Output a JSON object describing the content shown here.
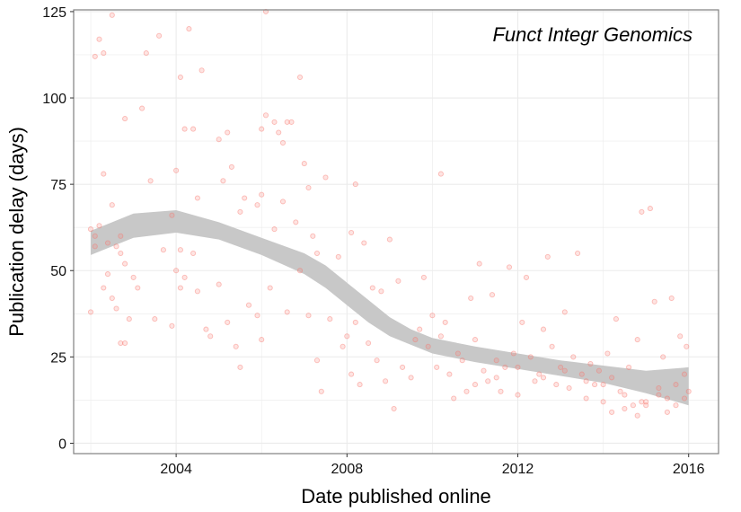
{
  "chart_data": {
    "type": "scatter",
    "title": "",
    "annotation": "Funct Integr Genomics",
    "xlabel": "Date published online",
    "ylabel": "Publication delay (days)",
    "xlim": [
      2001.6,
      2016.7
    ],
    "ylim": [
      -3,
      125.5
    ],
    "x_ticks": [
      2004,
      2008,
      2012,
      2016
    ],
    "x_tick_labels": [
      "2004",
      "2008",
      "2012",
      "2016"
    ],
    "y_ticks": [
      0,
      25,
      50,
      75,
      100,
      125
    ],
    "y_tick_labels": [
      "0",
      "25",
      "50",
      "75",
      "100",
      "125"
    ],
    "grid": true,
    "colors": {
      "points": "#f8766d",
      "smooth_band": "#c8c8c8",
      "panel_border": "#808080",
      "grid": "#ebebeb"
    },
    "smooth_band": [
      {
        "x": 2002.0,
        "lo": 54.5,
        "hi": 61.5
      },
      {
        "x": 2003.0,
        "lo": 59.5,
        "hi": 66.5
      },
      {
        "x": 2004.0,
        "lo": 61.0,
        "hi": 67.5
      },
      {
        "x": 2005.0,
        "lo": 59.0,
        "hi": 64.0
      },
      {
        "x": 2006.0,
        "lo": 54.5,
        "hi": 59.5
      },
      {
        "x": 2007.0,
        "lo": 49.0,
        "hi": 55.0
      },
      {
        "x": 2007.5,
        "lo": 45.0,
        "hi": 51.5
      },
      {
        "x": 2008.0,
        "lo": 40.0,
        "hi": 46.5
      },
      {
        "x": 2008.5,
        "lo": 35.0,
        "hi": 41.5
      },
      {
        "x": 2009.0,
        "lo": 31.0,
        "hi": 36.5
      },
      {
        "x": 2009.5,
        "lo": 28.5,
        "hi": 33.0
      },
      {
        "x": 2010.0,
        "lo": 26.0,
        "hi": 30.5
      },
      {
        "x": 2011.0,
        "lo": 23.5,
        "hi": 28.0
      },
      {
        "x": 2012.0,
        "lo": 21.5,
        "hi": 26.0
      },
      {
        "x": 2013.0,
        "lo": 19.5,
        "hi": 24.0
      },
      {
        "x": 2014.0,
        "lo": 17.5,
        "hi": 22.5
      },
      {
        "x": 2015.0,
        "lo": 14.5,
        "hi": 21.0
      },
      {
        "x": 2016.0,
        "lo": 11.0,
        "hi": 22.0
      }
    ],
    "points": [
      [
        2002.1,
        112
      ],
      [
        2002.2,
        117
      ],
      [
        2002.3,
        113
      ],
      [
        2002.5,
        124
      ],
      [
        2003.3,
        113
      ],
      [
        2003.6,
        118
      ],
      [
        2004.3,
        120
      ],
      [
        2004.6,
        108
      ],
      [
        2002.8,
        94
      ],
      [
        2003.2,
        97
      ],
      [
        2004.1,
        106
      ],
      [
        2004.2,
        91
      ],
      [
        2004.4,
        91
      ],
      [
        2005.0,
        88
      ],
      [
        2005.2,
        90
      ],
      [
        2005.6,
        71
      ],
      [
        2006.0,
        91
      ],
      [
        2006.1,
        95
      ],
      [
        2006.3,
        93
      ],
      [
        2006.4,
        90
      ],
      [
        2006.5,
        87
      ],
      [
        2006.6,
        93
      ],
      [
        2006.7,
        93
      ],
      [
        2006.9,
        106
      ],
      [
        2006.1,
        125
      ],
      [
        2007.0,
        81
      ],
      [
        2007.1,
        74
      ],
      [
        2007.5,
        77
      ],
      [
        2008.2,
        75
      ],
      [
        2010.2,
        78
      ],
      [
        2002.0,
        62
      ],
      [
        2002.1,
        60
      ],
      [
        2002.2,
        63
      ],
      [
        2002.3,
        78
      ],
      [
        2002.4,
        58
      ],
      [
        2002.5,
        69
      ],
      [
        2002.6,
        57
      ],
      [
        2002.7,
        60
      ],
      [
        2002.7,
        55
      ],
      [
        2002.8,
        52
      ],
      [
        2003.1,
        45
      ],
      [
        2003.4,
        76
      ],
      [
        2004.0,
        79
      ],
      [
        2004.5,
        71
      ],
      [
        2003.9,
        66
      ],
      [
        2004.1,
        56
      ],
      [
        2004.4,
        55
      ],
      [
        2005.1,
        76
      ],
      [
        2005.3,
        80
      ],
      [
        2005.5,
        67
      ],
      [
        2005.9,
        69
      ],
      [
        2006.0,
        72
      ],
      [
        2006.3,
        62
      ],
      [
        2006.5,
        70
      ],
      [
        2006.8,
        64
      ],
      [
        2007.2,
        60
      ],
      [
        2007.3,
        55
      ],
      [
        2007.8,
        54
      ],
      [
        2008.1,
        61
      ],
      [
        2008.4,
        58
      ],
      [
        2002.0,
        38
      ],
      [
        2002.1,
        57
      ],
      [
        2002.3,
        45
      ],
      [
        2002.4,
        49
      ],
      [
        2002.5,
        42
      ],
      [
        2002.6,
        39
      ],
      [
        2002.7,
        29
      ],
      [
        2002.8,
        29
      ],
      [
        2002.9,
        36
      ],
      [
        2003.0,
        48
      ],
      [
        2003.5,
        36
      ],
      [
        2003.7,
        56
      ],
      [
        2003.9,
        34
      ],
      [
        2004.0,
        50
      ],
      [
        2004.1,
        45
      ],
      [
        2004.2,
        48
      ],
      [
        2004.5,
        44
      ],
      [
        2004.7,
        33
      ],
      [
        2004.8,
        31
      ],
      [
        2005.0,
        46
      ],
      [
        2005.2,
        35
      ],
      [
        2005.4,
        28
      ],
      [
        2005.5,
        22
      ],
      [
        2005.7,
        40
      ],
      [
        2005.9,
        37
      ],
      [
        2006.0,
        30
      ],
      [
        2006.2,
        45
      ],
      [
        2006.6,
        38
      ],
      [
        2006.9,
        50
      ],
      [
        2007.1,
        37
      ],
      [
        2007.3,
        24
      ],
      [
        2007.6,
        36
      ],
      [
        2007.9,
        28
      ],
      [
        2008.0,
        31
      ],
      [
        2008.2,
        35
      ],
      [
        2008.5,
        29
      ],
      [
        2008.6,
        45
      ],
      [
        2008.8,
        44
      ],
      [
        2009.0,
        59
      ],
      [
        2009.2,
        47
      ],
      [
        2007.4,
        15
      ],
      [
        2008.1,
        20
      ],
      [
        2008.3,
        17
      ],
      [
        2008.7,
        24
      ],
      [
        2008.9,
        18
      ],
      [
        2009.1,
        10
      ],
      [
        2009.3,
        22
      ],
      [
        2009.5,
        19
      ],
      [
        2009.7,
        33
      ],
      [
        2009.8,
        48
      ],
      [
        2010.0,
        37
      ],
      [
        2010.1,
        22
      ],
      [
        2010.3,
        35
      ],
      [
        2010.4,
        20
      ],
      [
        2010.5,
        13
      ],
      [
        2010.6,
        26
      ],
      [
        2010.8,
        15
      ],
      [
        2010.9,
        42
      ],
      [
        2011.0,
        30
      ],
      [
        2011.1,
        52
      ],
      [
        2011.2,
        21
      ],
      [
        2011.3,
        18
      ],
      [
        2011.4,
        43
      ],
      [
        2011.5,
        19
      ],
      [
        2011.6,
        15
      ],
      [
        2011.7,
        22
      ],
      [
        2011.8,
        51
      ],
      [
        2011.9,
        26
      ],
      [
        2012.0,
        14
      ],
      [
        2012.1,
        35
      ],
      [
        2012.2,
        48
      ],
      [
        2012.3,
        25
      ],
      [
        2012.4,
        18
      ],
      [
        2012.5,
        20
      ],
      [
        2012.6,
        33
      ],
      [
        2012.7,
        54
      ],
      [
        2012.8,
        28
      ],
      [
        2012.9,
        17
      ],
      [
        2013.0,
        22
      ],
      [
        2013.1,
        38
      ],
      [
        2013.2,
        16
      ],
      [
        2013.3,
        25
      ],
      [
        2013.4,
        55
      ],
      [
        2013.5,
        20
      ],
      [
        2013.6,
        13
      ],
      [
        2013.7,
        23
      ],
      [
        2013.8,
        17
      ],
      [
        2013.9,
        21
      ],
      [
        2014.0,
        12
      ],
      [
        2014.1,
        26
      ],
      [
        2014.2,
        19
      ],
      [
        2014.3,
        36
      ],
      [
        2014.4,
        15
      ],
      [
        2014.5,
        10
      ],
      [
        2014.6,
        22
      ],
      [
        2014.7,
        11
      ],
      [
        2014.8,
        30
      ],
      [
        2014.9,
        67
      ],
      [
        2015.0,
        12
      ],
      [
        2015.1,
        68
      ],
      [
        2015.2,
        41
      ],
      [
        2015.3,
        14
      ],
      [
        2015.4,
        25
      ],
      [
        2015.5,
        13
      ],
      [
        2015.6,
        42
      ],
      [
        2015.7,
        17
      ],
      [
        2015.8,
        31
      ],
      [
        2015.9,
        20
      ],
      [
        2016.0,
        15
      ],
      [
        2015.95,
        28
      ],
      [
        2009.6,
        30
      ],
      [
        2009.9,
        28
      ],
      [
        2010.2,
        31
      ],
      [
        2010.7,
        24
      ],
      [
        2011.0,
        17
      ],
      [
        2011.5,
        24
      ],
      [
        2012.0,
        22
      ],
      [
        2012.6,
        19
      ],
      [
        2013.1,
        21
      ],
      [
        2013.6,
        18
      ],
      [
        2014.0,
        17
      ],
      [
        2014.5,
        14
      ],
      [
        2014.9,
        12
      ],
      [
        2015.3,
        16
      ],
      [
        2015.7,
        11
      ],
      [
        2014.2,
        9
      ],
      [
        2014.8,
        8
      ],
      [
        2015.0,
        11
      ],
      [
        2015.5,
        9
      ],
      [
        2015.9,
        13
      ]
    ]
  }
}
